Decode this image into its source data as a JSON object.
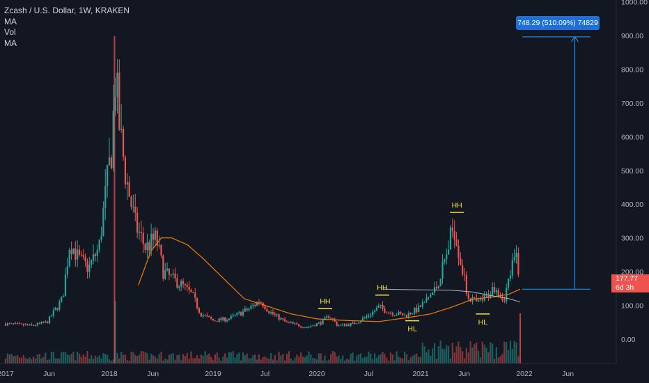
{
  "colors": {
    "background": "#131722",
    "up": "#26a69a",
    "down": "#ef5350",
    "ma_long": "#f57c00",
    "ma_short": "#b2b5be",
    "annotation": "#f7e23f",
    "measure": "#1e88e5"
  },
  "legend": {
    "title": "Zcash / U.S. Dollar, 1W, KRAKEN",
    "ma1": "MA",
    "vol": "Vol",
    "ma2": "MA"
  },
  "measure": {
    "label": "748.29 (510.09%) 74829"
  },
  "price_tag": {
    "price": "177.77",
    "countdown": "6d 3h"
  },
  "chart_data": {
    "type": "candlestick",
    "title": "Zcash / U.S. Dollar, 1W, KRAKEN",
    "y_ticks": [
      "1000.00",
      "900.00",
      "800.00",
      "700.00",
      "600.00",
      "500.00",
      "400.00",
      "300.00",
      "200.00",
      "100.00",
      "0.00"
    ],
    "x_ticks": [
      "2017",
      "Jun",
      "2018",
      "Jun",
      "2019",
      "Jul",
      "2020",
      "Jul",
      "2021",
      "Jun",
      "2022",
      "Jun"
    ],
    "ylim": [
      -85,
      1010
    ],
    "grid": false,
    "price_path": [
      [
        2017.0,
        45
      ],
      [
        2017.25,
        40
      ],
      [
        2017.4,
        50
      ],
      [
        2017.55,
        120
      ],
      [
        2017.62,
        290
      ],
      [
        2017.7,
        240
      ],
      [
        2017.8,
        210
      ],
      [
        2017.9,
        270
      ],
      [
        2017.96,
        420
      ],
      [
        2018.02,
        560
      ],
      [
        2018.06,
        780
      ],
      [
        2018.1,
        620
      ],
      [
        2018.16,
        480
      ],
      [
        2018.25,
        340
      ],
      [
        2018.35,
        270
      ],
      [
        2018.45,
        300
      ],
      [
        2018.52,
        200
      ],
      [
        2018.6,
        180
      ],
      [
        2018.7,
        160
      ],
      [
        2018.8,
        130
      ],
      [
        2018.88,
        75
      ],
      [
        2019.0,
        55
      ],
      [
        2019.15,
        60
      ],
      [
        2019.35,
        90
      ],
      [
        2019.45,
        115
      ],
      [
        2019.55,
        80
      ],
      [
        2019.7,
        50
      ],
      [
        2019.9,
        35
      ],
      [
        2020.05,
        50
      ],
      [
        2020.12,
        70
      ],
      [
        2020.2,
        40
      ],
      [
        2020.35,
        45
      ],
      [
        2020.5,
        70
      ],
      [
        2020.6,
        95
      ],
      [
        2020.7,
        80
      ],
      [
        2020.85,
        70
      ],
      [
        2020.98,
        90
      ],
      [
        2021.08,
        125
      ],
      [
        2021.15,
        150
      ],
      [
        2021.25,
        250
      ],
      [
        2021.32,
        340
      ],
      [
        2021.38,
        240
      ],
      [
        2021.45,
        130
      ],
      [
        2021.55,
        105
      ],
      [
        2021.65,
        130
      ],
      [
        2021.72,
        160
      ],
      [
        2021.8,
        115
      ],
      [
        2021.87,
        200
      ],
      [
        2021.92,
        250
      ],
      [
        2021.96,
        178
      ]
    ],
    "ma_long": [
      [
        2018.28,
        160
      ],
      [
        2018.4,
        260
      ],
      [
        2018.5,
        300
      ],
      [
        2018.6,
        300
      ],
      [
        2018.75,
        280
      ],
      [
        2018.9,
        240
      ],
      [
        2019.1,
        180
      ],
      [
        2019.3,
        120
      ],
      [
        2019.5,
        100
      ],
      [
        2019.75,
        75
      ],
      [
        2020.0,
        60
      ],
      [
        2020.3,
        55
      ],
      [
        2020.6,
        52
      ],
      [
        2020.9,
        65
      ],
      [
        2021.1,
        75
      ],
      [
        2021.3,
        95
      ],
      [
        2021.5,
        118
      ],
      [
        2021.7,
        125
      ],
      [
        2021.85,
        133
      ],
      [
        2021.96,
        148
      ]
    ],
    "ma_short": [
      [
        2020.64,
        148
      ],
      [
        2021.0,
        146
      ],
      [
        2021.3,
        145
      ],
      [
        2021.5,
        140
      ],
      [
        2021.7,
        128
      ],
      [
        2021.85,
        120
      ],
      [
        2021.96,
        110
      ]
    ],
    "volume_peaks": [
      [
        2018.05,
        0.9
      ],
      [
        2021.96,
        0.98
      ]
    ],
    "annotations": [
      {
        "text": "HH",
        "x": 2020.08,
        "y": 105
      },
      {
        "text": "HH",
        "x": 2020.63,
        "y": 145
      },
      {
        "text": "HL",
        "x": 2020.92,
        "y": 40
      },
      {
        "text": "HH",
        "x": 2021.35,
        "y": 390
      },
      {
        "text": "HL",
        "x": 2021.6,
        "y": 60
      }
    ],
    "measure": {
      "from": 148,
      "to": 896,
      "x": 2022.15
    }
  }
}
